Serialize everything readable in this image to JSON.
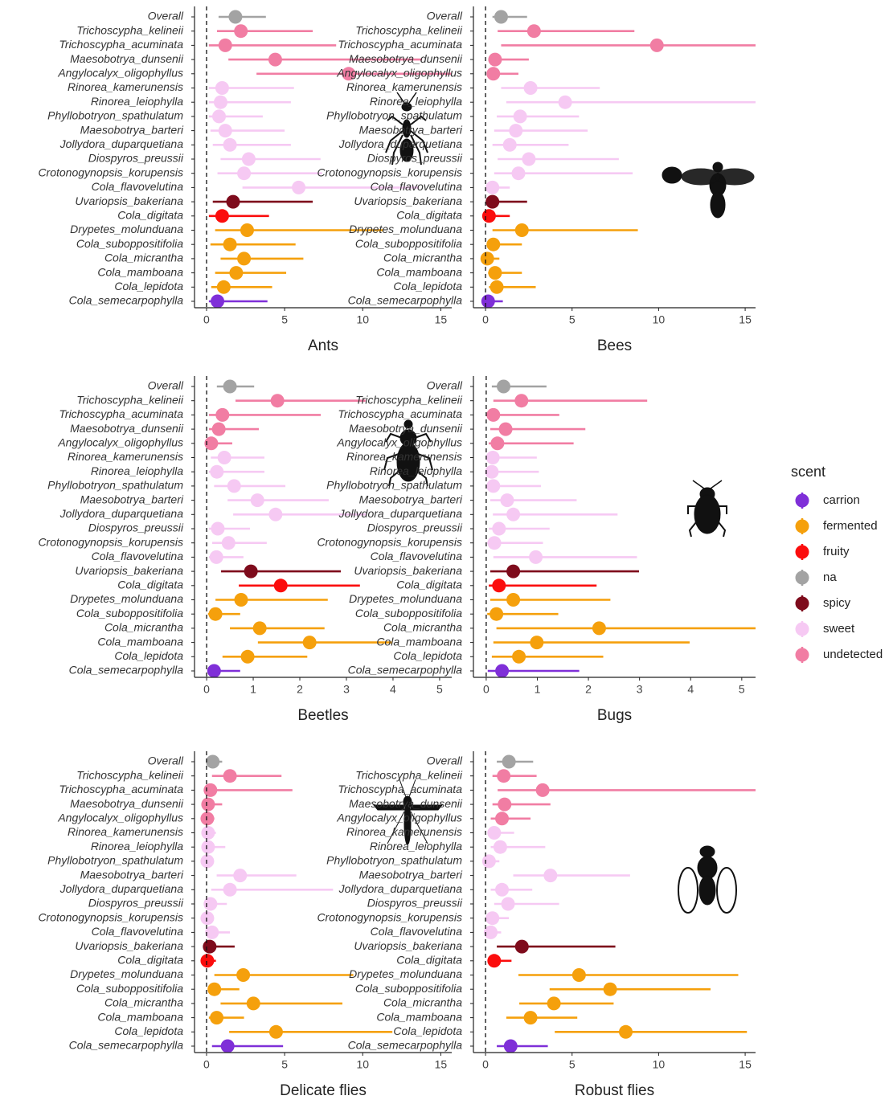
{
  "chart_data": [
    {
      "type": "pointrange",
      "xlabel": "Ants",
      "categories": [
        "Overall",
        "Trichoscypha_kelineii",
        "Trichoscypha_acuminata",
        "Maesobotrya_dunsenii",
        "Angylocalyx_oligophyllus",
        "Rinorea_kamerunensis",
        "Rinorea_leiophylla",
        "Phyllobotryon_spathulatum",
        "Maesobotrya_barteri",
        "Jollydora_duparquetiana",
        "Diospyros_preussii",
        "Crotonogynopsis_korupensis",
        "Cola_flavovelutina",
        "Uvariopsis_bakeriana",
        "Cola_digitata",
        "Drypetes_molunduana",
        "Cola_suboppositifolia",
        "Cola_micrantha",
        "Cola_mamboana",
        "Cola_lepidota",
        "Cola_semecarpophylla"
      ],
      "scent": [
        "na",
        "undetected",
        "undetected",
        "undetected",
        "undetected",
        "sweet",
        "sweet",
        "sweet",
        "sweet",
        "sweet",
        "sweet",
        "sweet",
        "sweet",
        "spicy",
        "fruity",
        "fermented",
        "fermented",
        "fermented",
        "fermented",
        "fermented",
        "carrion"
      ],
      "values": [
        1.85,
        2.2,
        1.2,
        4.4,
        9.1,
        1.0,
        0.9,
        0.8,
        1.2,
        1.5,
        2.7,
        2.4,
        5.9,
        1.7,
        1.0,
        2.6,
        1.5,
        2.4,
        1.9,
        1.1,
        0.7
      ],
      "lower": [
        0.77,
        0.67,
        0.15,
        1.4,
        3.2,
        0.15,
        0.15,
        0.15,
        0.25,
        0.4,
        0.9,
        0.7,
        2.3,
        0.4,
        0.15,
        0.55,
        0.25,
        0.9,
        0.55,
        0.3,
        0.15
      ],
      "upper": [
        3.8,
        6.8,
        8.3,
        13.8,
        16,
        5.6,
        5.4,
        3.6,
        5.0,
        5.4,
        7.3,
        7.4,
        13.6,
        6.8,
        4.0,
        11.3,
        5.7,
        6.2,
        5.1,
        4.2,
        3.9
      ],
      "xlim": [
        -0.77,
        15.7
      ],
      "xticks": [
        0,
        5,
        10,
        15
      ],
      "reference_line": 0
    },
    {
      "type": "pointrange",
      "xlabel": "Bees",
      "categories": [
        "Overall",
        "Trichoscypha_kelineii",
        "Trichoscypha_acuminata",
        "Maesobotrya_dunsenii",
        "Angylocalyx_oligophyllus",
        "Rinorea_kamerunensis",
        "Rinorea_leiophylla",
        "Phyllobotryon_spathulatum",
        "Maesobotrya_barteri",
        "Jollydora_duparquetiana",
        "Diospyros_preussii",
        "Crotonogynopsis_korupensis",
        "Cola_flavovelutina",
        "Uvariopsis_bakeriana",
        "Cola_digitata",
        "Drypetes_molunduana",
        "Cola_suboppositifolia",
        "Cola_micrantha",
        "Cola_mamboana",
        "Cola_lepidota",
        "Cola_semecarpophylla"
      ],
      "scent": [
        "na",
        "undetected",
        "undetected",
        "undetected",
        "undetected",
        "sweet",
        "sweet",
        "sweet",
        "sweet",
        "sweet",
        "sweet",
        "sweet",
        "sweet",
        "spicy",
        "fruity",
        "fermented",
        "fermented",
        "fermented",
        "fermented",
        "fermented",
        "carrion"
      ],
      "values": [
        0.9,
        2.8,
        9.9,
        0.55,
        0.45,
        2.6,
        4.6,
        2.0,
        1.75,
        1.4,
        2.5,
        1.9,
        0.4,
        0.4,
        0.2,
        2.1,
        0.45,
        0.1,
        0.55,
        0.65,
        0.15
      ],
      "lower": [
        0.4,
        0.7,
        0.9,
        0.2,
        0.2,
        0.9,
        1.2,
        0.65,
        0.5,
        0.4,
        0.7,
        0.5,
        0.1,
        0.1,
        0.05,
        0.4,
        0.1,
        0,
        0.15,
        0.2,
        0
      ],
      "upper": [
        2.4,
        8.6,
        16,
        2.5,
        1.9,
        6.6,
        16,
        5.4,
        5.9,
        4.8,
        7.7,
        8.5,
        1.4,
        2.4,
        1.4,
        8.8,
        2.1,
        0.8,
        2.1,
        2.9,
        1.0
      ],
      "xlim": [
        -0.7,
        15.6
      ],
      "xticks": [
        0,
        5,
        10,
        15
      ],
      "reference_line": 0
    },
    {
      "type": "pointrange",
      "xlabel": "Beetles",
      "categories": [
        "Overall",
        "Trichoscypha_kelineii",
        "Trichoscypha_acuminata",
        "Maesobotrya_dunsenii",
        "Angylocalyx_oligophyllus",
        "Rinorea_kamerunensis",
        "Rinorea_leiophylla",
        "Phyllobotryon_spathulatum",
        "Maesobotrya_barteri",
        "Jollydora_duparquetiana",
        "Diospyros_preussii",
        "Crotonogynopsis_korupensis",
        "Cola_flavovelutina",
        "Uvariopsis_bakeriana",
        "Cola_digitata",
        "Drypetes_molunduana",
        "Cola_suboppositifolia",
        "Cola_micrantha",
        "Cola_mamboana",
        "Cola_lepidota",
        "Cola_semecarpophylla"
      ],
      "scent": [
        "na",
        "undetected",
        "undetected",
        "undetected",
        "undetected",
        "sweet",
        "sweet",
        "sweet",
        "sweet",
        "sweet",
        "sweet",
        "sweet",
        "sweet",
        "spicy",
        "fruity",
        "fermented",
        "fermented",
        "fermented",
        "fermented",
        "fermented",
        "carrion"
      ],
      "values": [
        0.5,
        1.52,
        0.34,
        0.26,
        0.1,
        0.38,
        0.22,
        0.59,
        1.09,
        1.48,
        0.24,
        0.47,
        0.21,
        0.95,
        1.59,
        0.74,
        0.19,
        1.14,
        2.21,
        0.88,
        0.16
      ],
      "lower": [
        0.22,
        0.62,
        0.05,
        0.05,
        0.02,
        0.09,
        0.05,
        0.16,
        0.45,
        0.57,
        0.05,
        0.12,
        0.05,
        0.31,
        0.69,
        0.19,
        0.03,
        0.5,
        1.1,
        0.34,
        0.02
      ],
      "upper": [
        1.02,
        3.41,
        2.45,
        1.12,
        0.55,
        1.24,
        1.24,
        1.69,
        2.62,
        3.43,
        0.93,
        1.29,
        0.79,
        2.88,
        3.29,
        2.6,
        0.72,
        2.53,
        3.97,
        2.16,
        0.72
      ],
      "xlim": [
        -0.26,
        5.26
      ],
      "xticks": [
        0,
        1,
        2,
        3,
        4,
        5
      ],
      "reference_line": 0
    },
    {
      "type": "pointrange",
      "xlabel": "Bugs",
      "categories": [
        "Overall",
        "Trichoscypha_kelineii",
        "Trichoscypha_acuminata",
        "Maesobotrya_dunsenii",
        "Angylocalyx_oligophyllus",
        "Rinorea_kamerunensis",
        "Rinorea_leiophylla",
        "Phyllobotryon_spathulatum",
        "Maesobotrya_barteri",
        "Jollydora_duparquetiana",
        "Diospyros_preussii",
        "Crotonogynopsis_korupensis",
        "Cola_flavovelutina",
        "Uvariopsis_bakeriana",
        "Cola_digitata",
        "Drypetes_molunduana",
        "Cola_suboppositifolia",
        "Cola_micrantha",
        "Cola_mamboana",
        "Cola_lepidota",
        "Cola_semecarpophylla"
      ],
      "scent": [
        "na",
        "undetected",
        "undetected",
        "undetected",
        "undetected",
        "sweet",
        "sweet",
        "sweet",
        "sweet",
        "sweet",
        "sweet",
        "sweet",
        "sweet",
        "spicy",
        "fruity",
        "fermented",
        "fermented",
        "fermented",
        "fermented",
        "fermented",
        "carrion"
      ],
      "values": [
        0.34,
        0.69,
        0.14,
        0.38,
        0.22,
        0.13,
        0.11,
        0.14,
        0.41,
        0.53,
        0.25,
        0.16,
        0.97,
        0.53,
        0.25,
        0.53,
        0.2,
        2.21,
        0.99,
        0.64,
        0.31
      ],
      "lower": [
        0.11,
        0.14,
        0.03,
        0.08,
        0.05,
        0.02,
        0.02,
        0.02,
        0.08,
        0.13,
        0.05,
        0.02,
        0.14,
        0.08,
        0.05,
        0.08,
        0.02,
        0.2,
        0.14,
        0.11,
        0.03
      ],
      "upper": [
        1.18,
        3.15,
        1.43,
        1.94,
        1.71,
        0.99,
        1.03,
        1.07,
        1.77,
        2.57,
        1.24,
        1.11,
        2.95,
        2.99,
        2.16,
        2.43,
        1.41,
        5.4,
        3.98,
        2.29,
        1.82
      ],
      "xlim": [
        -0.25,
        5.27
      ],
      "xticks": [
        0,
        1,
        2,
        3,
        4,
        5
      ],
      "reference_line": 0
    },
    {
      "type": "pointrange",
      "xlabel": "Delicate flies",
      "categories": [
        "Overall",
        "Trichoscypha_kelineii",
        "Trichoscypha_acuminata",
        "Maesobotrya_dunsenii",
        "Angylocalyx_oligophyllus",
        "Rinorea_kamerunensis",
        "Rinorea_leiophylla",
        "Phyllobotryon_spathulatum",
        "Maesobotrya_barteri",
        "Jollydora_duparquetiana",
        "Diospyros_preussii",
        "Crotonogynopsis_korupensis",
        "Cola_flavovelutina",
        "Uvariopsis_bakeriana",
        "Cola_digitata",
        "Drypetes_molunduana",
        "Cola_suboppositifolia",
        "Cola_micrantha",
        "Cola_mamboana",
        "Cola_lepidota",
        "Cola_semecarpophylla"
      ],
      "scent": [
        "na",
        "undetected",
        "undetected",
        "undetected",
        "undetected",
        "sweet",
        "sweet",
        "sweet",
        "sweet",
        "sweet",
        "sweet",
        "sweet",
        "sweet",
        "spicy",
        "fruity",
        "fermented",
        "fermented",
        "fermented",
        "fermented",
        "fermented",
        "carrion"
      ],
      "values": [
        0.4,
        1.5,
        0.25,
        0.1,
        0.05,
        0.1,
        0.1,
        0.05,
        2.15,
        1.5,
        0.25,
        0.05,
        0.35,
        0.2,
        0.05,
        2.35,
        0.5,
        3.0,
        0.65,
        4.45,
        1.35
      ],
      "lower": [
        0.15,
        0.35,
        0.05,
        0,
        0,
        0,
        0,
        0,
        0.65,
        0.3,
        0.05,
        0,
        0.05,
        0,
        0,
        0.5,
        0.1,
        0.9,
        0.15,
        1.45,
        0.35
      ],
      "upper": [
        1.0,
        4.8,
        5.5,
        1.0,
        0.5,
        0.6,
        1.2,
        0.3,
        5.75,
        8.1,
        1.3,
        0.4,
        1.5,
        1.8,
        0.6,
        9.4,
        2.1,
        8.7,
        2.4,
        11.9,
        4.9
      ],
      "xlim": [
        -0.77,
        15.7
      ],
      "xticks": [
        0,
        5,
        10,
        15
      ],
      "reference_line": 0
    },
    {
      "type": "pointrange",
      "xlabel": "Robust flies",
      "categories": [
        "Overall",
        "Trichoscypha_kelineii",
        "Trichoscypha_acuminata",
        "Maesobotrya_dunsenii",
        "Angylocalyx_oligophyllus",
        "Rinorea_kamerunensis",
        "Rinorea_leiophylla",
        "Phyllobotryon_spathulatum",
        "Maesobotrya_barteri",
        "Jollydora_duparquetiana",
        "Diospyros_preussii",
        "Crotonogynopsis_korupensis",
        "Cola_flavovelutina",
        "Uvariopsis_bakeriana",
        "Cola_digitata",
        "Drypetes_molunduana",
        "Cola_suboppositifolia",
        "Cola_micrantha",
        "Cola_mamboana",
        "Cola_lepidota",
        "Cola_semecarpophylla"
      ],
      "scent": [
        "na",
        "undetected",
        "undetected",
        "undetected",
        "undetected",
        "sweet",
        "sweet",
        "sweet",
        "sweet",
        "sweet",
        "sweet",
        "sweet",
        "sweet",
        "spicy",
        "fruity",
        "fermented",
        "fermented",
        "fermented",
        "fermented",
        "fermented",
        "carrion"
      ],
      "values": [
        1.35,
        1.05,
        3.3,
        1.1,
        0.95,
        0.5,
        0.85,
        0.2,
        3.75,
        0.95,
        1.3,
        0.4,
        0.3,
        2.1,
        0.5,
        5.4,
        7.2,
        3.95,
        2.6,
        8.1,
        1.45
      ],
      "lower": [
        0.65,
        0.4,
        0.7,
        0.4,
        0.3,
        0.15,
        0.3,
        0.02,
        1.6,
        0.3,
        0.5,
        0.1,
        0.02,
        0.65,
        0.15,
        1.9,
        3.7,
        1.95,
        1.2,
        4.0,
        0.65
      ],
      "upper": [
        2.75,
        2.95,
        16,
        3.75,
        2.6,
        1.65,
        3.45,
        0.8,
        8.35,
        2.7,
        4.25,
        1.35,
        0.9,
        7.5,
        1.5,
        14.6,
        13.0,
        7.4,
        5.3,
        15.1,
        3.6
      ],
      "xlim": [
        -0.7,
        15.6
      ],
      "xticks": [
        0,
        5,
        10,
        15
      ],
      "reference_line": 0
    }
  ],
  "legend": {
    "title": "scent",
    "items": [
      {
        "name": "carrion",
        "color": "#7f2fd8"
      },
      {
        "name": "fermented",
        "color": "#f5a00c"
      },
      {
        "name": "fruity",
        "color": "#fb0d0d"
      },
      {
        "name": "na",
        "color": "#a3a3a3"
      },
      {
        "name": "spicy",
        "color": "#7e0b1c"
      },
      {
        "name": "sweet",
        "color": "#f6c9f3"
      },
      {
        "name": "undetected",
        "color": "#f17da3"
      }
    ]
  }
}
